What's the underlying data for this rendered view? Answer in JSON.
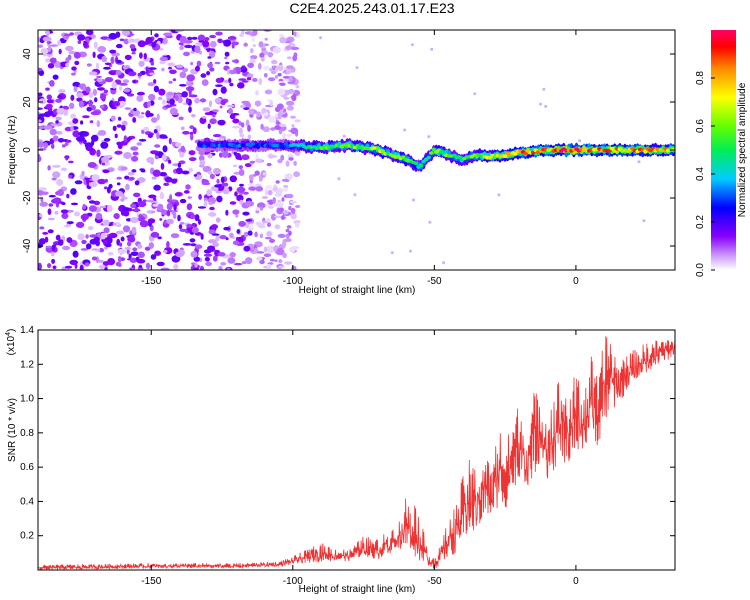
{
  "title": "C2E4.2025.243.01.17.E23",
  "chart_data": [
    {
      "type": "heatmap",
      "xlabel": "Height of straight line (km)",
      "ylabel": "Frequency (Hz)",
      "xlim": [
        -190,
        35
      ],
      "ylim": [
        -50,
        50
      ],
      "xticks": [
        -150,
        -100,
        -50,
        0
      ],
      "yticks": [
        -40,
        -20,
        0,
        20,
        40
      ],
      "x_tick_labels": [
        "-150",
        "-100",
        "-50",
        "0"
      ],
      "y_tick_labels": [
        "-40",
        "-20",
        "0",
        "20",
        "40"
      ],
      "noise_region_x": [
        -190,
        -100
      ],
      "ridge": {
        "x": [
          -133,
          -120,
          -110,
          -100,
          -90,
          -80,
          -70,
          -60,
          -55,
          -50,
          -45,
          -40,
          -35,
          -30,
          -25,
          -20,
          -10,
          0,
          10,
          20,
          35
        ],
        "freq": [
          2,
          2,
          2,
          2,
          1,
          2,
          0,
          -4,
          -7,
          0,
          -2,
          -4,
          -2,
          -3,
          -2,
          -1,
          0,
          0,
          0,
          0,
          0
        ],
        "peak_amplitude": [
          0.3,
          0.35,
          0.3,
          0.4,
          0.6,
          0.6,
          0.65,
          0.6,
          0.5,
          0.6,
          0.6,
          0.55,
          0.65,
          0.75,
          0.8,
          0.85,
          0.9,
          0.95,
          0.9,
          0.85,
          0.8
        ]
      },
      "colorbar": {
        "label": "Normalized spectral amplitude",
        "range": [
          0,
          1
        ],
        "ticks": [
          0.0,
          0.2,
          0.4,
          0.6,
          0.8
        ],
        "tick_labels": [
          "0.0",
          "0.2",
          "0.4",
          "0.6",
          "0.8"
        ]
      }
    },
    {
      "type": "line",
      "xlabel": "Height of straight line (km)",
      "ylabel": "SNR (10 * v/v)",
      "scale_label": "(x10",
      "scale_exp": "4",
      "scale_close": ")",
      "xlim": [
        -190,
        35
      ],
      "ylim": [
        0,
        1.4
      ],
      "xticks": [
        -150,
        -100,
        -50,
        0
      ],
      "yticks": [
        0.2,
        0.4,
        0.6,
        0.8,
        1.0,
        1.2,
        1.4
      ],
      "x_tick_labels": [
        "-150",
        "-100",
        "-50",
        "0"
      ],
      "y_tick_labels": [
        "0.2",
        "0.4",
        "0.6",
        "0.8",
        "1.0",
        "1.2",
        "1.4"
      ],
      "color": "#ee3333",
      "envelope": {
        "x": [
          -190,
          -150,
          -120,
          -105,
          -100,
          -95,
          -90,
          -85,
          -80,
          -75,
          -70,
          -65,
          -62,
          -60,
          -57,
          -55,
          -52,
          -50,
          -48,
          -45,
          -42,
          -40,
          -38,
          -35,
          -32,
          -30,
          -27,
          -25,
          -22,
          -20,
          -17,
          -15,
          -12,
          -10,
          -7,
          -5,
          -2,
          0,
          3,
          5,
          8,
          10,
          12,
          15,
          18,
          20,
          25,
          30,
          35
        ],
        "upper": [
          0.03,
          0.04,
          0.04,
          0.05,
          0.08,
          0.12,
          0.16,
          0.13,
          0.12,
          0.2,
          0.18,
          0.25,
          0.3,
          0.45,
          0.42,
          0.3,
          0.12,
          0.08,
          0.14,
          0.3,
          0.4,
          0.55,
          0.65,
          0.6,
          0.72,
          0.58,
          0.88,
          0.72,
          0.92,
          0.98,
          0.8,
          1.05,
          1.02,
          0.92,
          1.1,
          1.15,
          1.0,
          1.2,
          1.05,
          1.28,
          1.1,
          1.38,
          1.42,
          1.2,
          1.3,
          1.28,
          1.33,
          1.35,
          1.37
        ],
        "lower": [
          0.0,
          0.01,
          0.01,
          0.02,
          0.03,
          0.04,
          0.05,
          0.05,
          0.05,
          0.08,
          0.06,
          0.1,
          0.12,
          0.1,
          0.08,
          0.05,
          0.02,
          0.0,
          0.03,
          0.07,
          0.1,
          0.15,
          0.2,
          0.22,
          0.3,
          0.3,
          0.38,
          0.35,
          0.45,
          0.5,
          0.48,
          0.55,
          0.6,
          0.52,
          0.6,
          0.62,
          0.58,
          0.7,
          0.7,
          0.75,
          0.72,
          0.85,
          0.9,
          0.95,
          1.05,
          1.08,
          1.15,
          1.2,
          1.25
        ]
      }
    }
  ]
}
